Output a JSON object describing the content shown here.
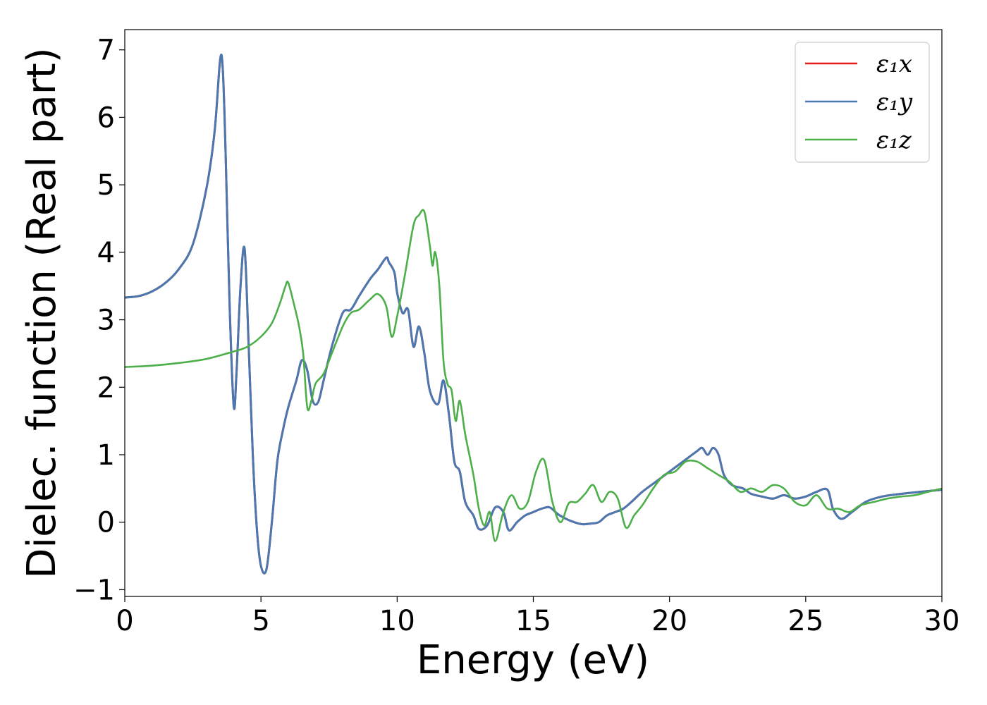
{
  "chart_data": {
    "type": "line",
    "xlabel": "Energy (eV)",
    "ylabel": "Dielec. function (Real part)",
    "xlim": [
      0,
      30
    ],
    "ylim": [
      -1.1,
      7.3
    ],
    "xticks": [
      0,
      5,
      10,
      15,
      20,
      25,
      30
    ],
    "yticks": [
      -1,
      0,
      1,
      2,
      3,
      4,
      5,
      6,
      7
    ],
    "xtick_labels": [
      "0",
      "5",
      "10",
      "15",
      "20",
      "25",
      "30"
    ],
    "ytick_labels": [
      "−1",
      "0",
      "1",
      "2",
      "3",
      "4",
      "5",
      "6",
      "7"
    ],
    "grid": false,
    "legend_position": "top-right",
    "series": [
      {
        "name": "ε₁x",
        "color": "#e41a1c",
        "x": [
          0,
          0.5,
          1.0,
          1.5,
          2.0,
          2.5,
          3.0,
          3.3,
          3.5,
          3.6,
          3.7,
          3.85,
          4.0,
          4.1,
          4.25,
          4.4,
          4.55,
          4.7,
          4.85,
          5.0,
          5.2,
          5.4,
          5.6,
          5.8,
          6.0,
          6.3,
          6.5,
          6.7,
          6.9,
          7.1,
          7.3,
          7.6,
          8.0,
          8.3,
          8.6,
          9.0,
          9.3,
          9.6,
          9.7,
          9.9,
          10.0,
          10.2,
          10.4,
          10.6,
          10.8,
          11.0,
          11.2,
          11.5,
          11.7,
          11.9,
          12.1,
          12.3,
          12.5,
          12.8,
          13.0,
          13.3,
          13.6,
          13.9,
          14.1,
          14.4,
          14.7,
          15.0,
          15.3,
          15.6,
          15.9,
          16.2,
          16.5,
          16.8,
          17.1,
          17.4,
          17.7,
          18.0,
          18.3,
          18.6,
          19.0,
          19.5,
          20.0,
          20.5,
          21.0,
          21.2,
          21.4,
          21.6,
          21.8,
          22.0,
          22.3,
          22.7,
          23.0,
          23.4,
          23.8,
          24.2,
          24.6,
          25.0,
          25.4,
          25.8,
          26.0,
          26.3,
          26.7,
          27.2,
          27.8,
          28.5,
          29.2,
          30.0
        ],
        "y": [
          3.33,
          3.35,
          3.42,
          3.55,
          3.76,
          4.12,
          4.95,
          5.8,
          6.85,
          6.7,
          5.5,
          3.2,
          1.72,
          2.2,
          3.5,
          4.05,
          2.6,
          1.0,
          -0.1,
          -0.65,
          -0.7,
          0.0,
          0.9,
          1.35,
          1.7,
          2.1,
          2.4,
          2.25,
          1.8,
          1.78,
          2.1,
          2.6,
          3.1,
          3.15,
          3.35,
          3.6,
          3.75,
          3.92,
          3.85,
          3.7,
          3.4,
          3.1,
          3.15,
          2.6,
          2.9,
          2.5,
          1.95,
          1.75,
          2.1,
          1.6,
          0.9,
          0.75,
          0.3,
          0.1,
          -0.1,
          -0.05,
          0.22,
          0.15,
          -0.12,
          0.0,
          0.1,
          0.15,
          0.2,
          0.22,
          0.12,
          0.05,
          0.0,
          -0.03,
          -0.02,
          0.0,
          0.1,
          0.15,
          0.2,
          0.3,
          0.45,
          0.6,
          0.75,
          0.9,
          1.05,
          1.1,
          1.0,
          1.1,
          1.0,
          0.7,
          0.55,
          0.5,
          0.42,
          0.38,
          0.35,
          0.4,
          0.35,
          0.38,
          0.45,
          0.48,
          0.2,
          0.05,
          0.15,
          0.3,
          0.38,
          0.42,
          0.45,
          0.48
        ]
      },
      {
        "name": "ε₁y",
        "color": "#4a78b0",
        "x": [
          0,
          0.5,
          1.0,
          1.5,
          2.0,
          2.5,
          3.0,
          3.3,
          3.5,
          3.6,
          3.7,
          3.85,
          4.0,
          4.1,
          4.25,
          4.4,
          4.55,
          4.7,
          4.85,
          5.0,
          5.2,
          5.4,
          5.6,
          5.8,
          6.0,
          6.3,
          6.5,
          6.7,
          6.9,
          7.1,
          7.3,
          7.6,
          8.0,
          8.3,
          8.6,
          9.0,
          9.3,
          9.6,
          9.7,
          9.9,
          10.0,
          10.2,
          10.4,
          10.6,
          10.8,
          11.0,
          11.2,
          11.5,
          11.7,
          11.9,
          12.1,
          12.3,
          12.5,
          12.8,
          13.0,
          13.3,
          13.6,
          13.9,
          14.1,
          14.4,
          14.7,
          15.0,
          15.3,
          15.6,
          15.9,
          16.2,
          16.5,
          16.8,
          17.1,
          17.4,
          17.7,
          18.0,
          18.3,
          18.6,
          19.0,
          19.5,
          20.0,
          20.5,
          21.0,
          21.2,
          21.4,
          21.6,
          21.8,
          22.0,
          22.3,
          22.7,
          23.0,
          23.4,
          23.8,
          24.2,
          24.6,
          25.0,
          25.4,
          25.8,
          26.0,
          26.3,
          26.7,
          27.2,
          27.8,
          28.5,
          29.2,
          30.0
        ],
        "y": [
          3.33,
          3.35,
          3.42,
          3.55,
          3.76,
          4.12,
          4.95,
          5.8,
          6.85,
          6.7,
          5.5,
          3.2,
          1.72,
          2.2,
          3.5,
          4.05,
          2.6,
          1.0,
          -0.1,
          -0.65,
          -0.7,
          0.0,
          0.9,
          1.35,
          1.7,
          2.1,
          2.4,
          2.25,
          1.8,
          1.78,
          2.1,
          2.6,
          3.1,
          3.15,
          3.35,
          3.6,
          3.75,
          3.92,
          3.85,
          3.7,
          3.4,
          3.1,
          3.15,
          2.6,
          2.9,
          2.5,
          1.95,
          1.75,
          2.1,
          1.6,
          0.9,
          0.75,
          0.3,
          0.1,
          -0.1,
          -0.05,
          0.22,
          0.15,
          -0.12,
          0.0,
          0.1,
          0.15,
          0.2,
          0.22,
          0.12,
          0.05,
          0.0,
          -0.03,
          -0.02,
          0.0,
          0.1,
          0.15,
          0.2,
          0.3,
          0.45,
          0.6,
          0.75,
          0.9,
          1.05,
          1.1,
          1.0,
          1.1,
          1.0,
          0.7,
          0.55,
          0.5,
          0.42,
          0.38,
          0.35,
          0.4,
          0.35,
          0.38,
          0.45,
          0.48,
          0.2,
          0.05,
          0.15,
          0.3,
          0.38,
          0.42,
          0.45,
          0.48
        ]
      },
      {
        "name": "ε₁z",
        "color": "#4daf4a",
        "x": [
          0,
          1.0,
          2.0,
          3.0,
          4.0,
          4.5,
          5.0,
          5.4,
          5.7,
          5.9,
          6.0,
          6.2,
          6.4,
          6.55,
          6.7,
          6.85,
          7.0,
          7.3,
          7.6,
          8.0,
          8.3,
          8.6,
          9.0,
          9.3,
          9.6,
          9.8,
          10.0,
          10.3,
          10.6,
          10.8,
          11.0,
          11.2,
          11.3,
          11.4,
          11.55,
          11.7,
          11.85,
          12.0,
          12.15,
          12.3,
          12.5,
          12.8,
          13.0,
          13.2,
          13.4,
          13.6,
          13.9,
          14.2,
          14.5,
          14.8,
          15.1,
          15.4,
          15.7,
          16.0,
          16.3,
          16.6,
          16.9,
          17.2,
          17.5,
          17.8,
          18.1,
          18.4,
          18.7,
          19.0,
          19.4,
          19.8,
          20.2,
          20.6,
          21.0,
          21.4,
          21.8,
          22.2,
          22.6,
          23.0,
          23.4,
          23.8,
          24.2,
          24.6,
          25.0,
          25.4,
          25.8,
          26.2,
          26.6,
          27.0,
          27.5,
          28.0,
          28.5,
          29.0,
          29.5,
          30.0
        ],
        "y": [
          2.3,
          2.32,
          2.36,
          2.42,
          2.53,
          2.6,
          2.75,
          2.95,
          3.25,
          3.5,
          3.55,
          3.25,
          2.9,
          2.5,
          1.7,
          1.8,
          2.05,
          2.2,
          2.5,
          2.9,
          3.1,
          3.15,
          3.3,
          3.38,
          3.2,
          2.75,
          3.05,
          3.7,
          4.4,
          4.55,
          4.6,
          4.1,
          3.8,
          4.0,
          3.5,
          2.4,
          2.05,
          1.95,
          1.5,
          1.8,
          1.3,
          0.7,
          0.2,
          -0.05,
          0.15,
          -0.28,
          0.15,
          0.4,
          0.2,
          0.3,
          0.75,
          0.92,
          0.3,
          0.0,
          0.28,
          0.3,
          0.42,
          0.55,
          0.3,
          0.45,
          0.35,
          -0.08,
          0.1,
          0.25,
          0.5,
          0.7,
          0.75,
          0.9,
          0.9,
          0.8,
          0.7,
          0.6,
          0.45,
          0.5,
          0.45,
          0.55,
          0.5,
          0.3,
          0.25,
          0.4,
          0.2,
          0.2,
          0.15,
          0.25,
          0.3,
          0.35,
          0.38,
          0.4,
          0.45,
          0.5
        ]
      }
    ]
  }
}
